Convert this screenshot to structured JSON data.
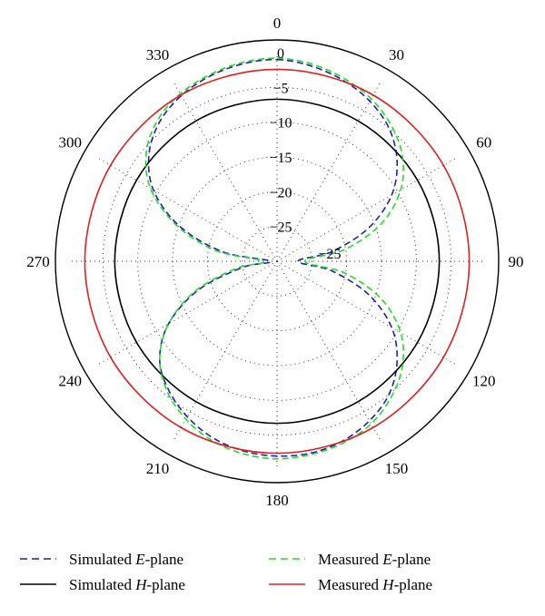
{
  "chart_data": {
    "type": "polar-line",
    "angle_ticks": [
      "0",
      "30",
      "60",
      "90",
      "120",
      "150",
      "180",
      "210",
      "240",
      "270",
      "300",
      "330"
    ],
    "radial_tick_labels": [
      "0",
      "-5",
      "-10",
      "-15",
      "-20",
      "-25"
    ],
    "extra_label": "-25",
    "radial_range": [
      -30,
      0
    ],
    "grid": true,
    "legend_position": "bottom",
    "series": [
      {
        "name": "Simulated E-plane",
        "color": "#1f1fb4",
        "dash": true,
        "theta": [
          0,
          10,
          20,
          30,
          40,
          50,
          60,
          70,
          80,
          90,
          100,
          110,
          120,
          130,
          140,
          150,
          160,
          170,
          180,
          190,
          200,
          210,
          220,
          230,
          240,
          250,
          260,
          270,
          280,
          290,
          300,
          310,
          320,
          330,
          340,
          350,
          360
        ],
        "r": [
          -1,
          -1.5,
          -2.3,
          -3.4,
          -5,
          -7.5,
          -11,
          -16,
          -22,
          -27,
          -22,
          -16,
          -11,
          -7.5,
          -5,
          -3.5,
          -2.5,
          -2,
          -2,
          -2.3,
          -3,
          -4.2,
          -5.8,
          -8,
          -12,
          -18,
          -25,
          -29,
          -22,
          -15,
          -9.5,
          -6,
          -3.8,
          -2.5,
          -1.7,
          -1.2,
          -1
        ]
      },
      {
        "name": "Simulated H-plane",
        "color": "#000000",
        "dash": false,
        "theta": [
          0,
          30,
          60,
          90,
          120,
          150,
          180,
          210,
          240,
          270,
          300,
          330,
          360
        ],
        "r": [
          -6.7,
          -6.7,
          -6.7,
          -6.7,
          -6.7,
          -6.7,
          -6.7,
          -6.7,
          -6.7,
          -6.7,
          -6.7,
          -6.7,
          -6.7
        ]
      },
      {
        "name": "Measured E-plane",
        "color": "#22dd22",
        "dash": true,
        "theta": [
          0,
          10,
          20,
          30,
          40,
          50,
          60,
          70,
          80,
          90,
          100,
          110,
          120,
          130,
          140,
          150,
          160,
          170,
          180,
          190,
          200,
          210,
          220,
          230,
          240,
          250,
          260,
          270,
          280,
          290,
          300,
          310,
          320,
          330,
          340,
          350,
          360
        ],
        "r": [
          -0.8,
          -1.2,
          -2,
          -3,
          -4.5,
          -6.5,
          -9.5,
          -14,
          -20,
          -26,
          -20,
          -14,
          -9.5,
          -6.5,
          -4.5,
          -3,
          -2.2,
          -1.8,
          -1.6,
          -1.9,
          -2.6,
          -3.8,
          -5.5,
          -8,
          -12,
          -17.5,
          -24,
          -28,
          -21,
          -14.5,
          -9,
          -5.5,
          -3.4,
          -2.2,
          -1.5,
          -1,
          -0.8
        ]
      },
      {
        "name": "Measured H-plane",
        "color": "#e02020",
        "dash": false,
        "theta": [
          0,
          30,
          60,
          90,
          120,
          150,
          180,
          210,
          240,
          270,
          300,
          330,
          360
        ],
        "r": [
          -2.4,
          -2.4,
          -2.4,
          -2.4,
          -2.4,
          -2.4,
          -2.4,
          -2.4,
          -2.4,
          -2.4,
          -2.4,
          -2.4,
          -2.4
        ]
      }
    ]
  },
  "legend": [
    {
      "prefix": "Simulated ",
      "italic": "E",
      "suffix": "-plane"
    },
    {
      "prefix": "Measured ",
      "italic": "E",
      "suffix": "-plane"
    },
    {
      "prefix": "Simulated ",
      "italic": "H",
      "suffix": "-plane"
    },
    {
      "prefix": "Measured ",
      "italic": "H",
      "suffix": "-plane"
    }
  ]
}
